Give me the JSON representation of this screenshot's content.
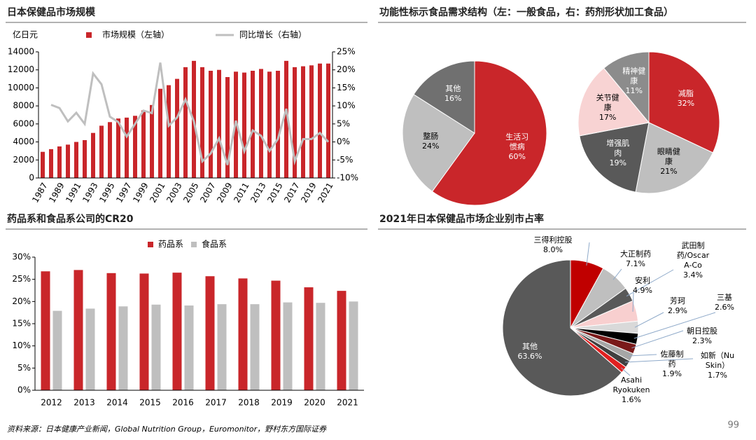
{
  "chart_data": [
    {
      "type": "bar",
      "title": "日本保健品市场规模",
      "y_label": "亿日元",
      "categories": [
        "1987",
        null,
        "1989",
        null,
        "1991",
        null,
        "1993",
        null,
        "1995",
        null,
        "1997",
        null,
        "1999",
        null,
        "2001",
        null,
        "2003",
        null,
        "2005",
        null,
        "2007",
        null,
        "2009",
        null,
        "2011",
        null,
        "2013",
        null,
        "2015",
        null,
        "2017",
        null,
        "2019",
        null,
        "2021"
      ],
      "series": [
        {
          "name": "市场规模（左轴）",
          "color": "#c9262a",
          "values": [
            2900,
            3200,
            3500,
            3700,
            4000,
            4200,
            5000,
            5800,
            6200,
            6600,
            6700,
            6900,
            7500,
            8100,
            9900,
            10300,
            11000,
            12300,
            13000,
            12300,
            11900,
            12000,
            11200,
            11800,
            11700,
            11900,
            12100,
            11800,
            11900,
            13000,
            12300,
            12400,
            12500,
            12700,
            12700
          ]
        },
        {
          "name": "同比增长（右轴）",
          "color": "#bfbfbf",
          "type": "line",
          "axis": "y2",
          "values": [
            null,
            10.3,
            9.4,
            5.7,
            8.1,
            5.0,
            19.0,
            16.0,
            7.0,
            5.5,
            1.5,
            5.0,
            8.7,
            8.0,
            22.0,
            4.5,
            6.8,
            11.8,
            5.7,
            -5.4,
            -3.2,
            1.0,
            -6.4,
            5.9,
            -2.6,
            3.2,
            1.7,
            -2.5,
            0.8,
            9.2,
            -5.4,
            0.8,
            0.8,
            2.5,
            0.0
          ]
        }
      ],
      "ylim": [
        0,
        14000
      ],
      "yticks": [
        0,
        2000,
        4000,
        6000,
        8000,
        10000,
        12000,
        14000
      ],
      "y2lim": [
        -10,
        25
      ],
      "y2ticks": [
        {
          "value": -10,
          "label": "-10%"
        },
        {
          "value": -5,
          "label": "-5%"
        },
        {
          "value": 0,
          "label": "0%"
        },
        {
          "value": 5,
          "label": "5%"
        },
        {
          "value": 10,
          "label": "10%"
        },
        {
          "value": 15,
          "label": "15%"
        },
        {
          "value": 20,
          "label": "20%"
        },
        {
          "value": 25,
          "label": "25%"
        }
      ]
    },
    {
      "type": "pie",
      "title": "功能性标示食品需求结构（左：一般食品，右：药剂形状加工食品）",
      "pies": [
        {
          "categories": [
            "生活习惯病",
            "整肠",
            "其他"
          ],
          "values": [
            60,
            24,
            16
          ],
          "value_labels": [
            "60%",
            "24%",
            "16%"
          ],
          "colors": [
            "#c9262a",
            "#bfbfbf",
            "#707070"
          ]
        },
        {
          "categories": [
            "减脂",
            "眼睛健康",
            "增强肌肉",
            "关节健康",
            "精神健康"
          ],
          "values": [
            32,
            21,
            19,
            17,
            11
          ],
          "value_labels": [
            "32%",
            "21%",
            "19%",
            "17%",
            "11%"
          ],
          "colors": [
            "#c9262a",
            "#bfbfbf",
            "#595959",
            "#f8d3d3",
            "#8c8c8c"
          ]
        }
      ]
    },
    {
      "type": "bar",
      "title": "药品系和食品系公司的CR20",
      "categories": [
        "2012",
        "2013",
        "2014",
        "2015",
        "2016",
        "2017",
        "2018",
        "2019",
        "2020",
        "2021"
      ],
      "series": [
        {
          "name": "药品系",
          "color": "#c9262a",
          "values": [
            26.8,
            27.1,
            26.4,
            26.3,
            26.5,
            25.7,
            25.2,
            24.7,
            23.2,
            22.4
          ]
        },
        {
          "name": "食品系",
          "color": "#bfbfbf",
          "values": [
            17.9,
            18.4,
            18.9,
            19.3,
            19.1,
            19.4,
            19.4,
            19.8,
            19.7,
            20.0
          ]
        }
      ],
      "ylim": [
        0,
        30
      ],
      "yticks": [
        {
          "value": 0,
          "label": "0%"
        },
        {
          "value": 5,
          "label": "5%"
        },
        {
          "value": 10,
          "label": "10%"
        },
        {
          "value": 15,
          "label": "15%"
        },
        {
          "value": 20,
          "label": "20%"
        },
        {
          "value": 25,
          "label": "25%"
        },
        {
          "value": 30,
          "label": "30%"
        }
      ]
    },
    {
      "type": "pie",
      "title": "2021年日本保健品市场企业别市占率",
      "pies": [
        {
          "categories": [
            "三得利控股",
            "大正制药",
            "武田制药/Oscar A-Co",
            "安利",
            "芳珂",
            "三基",
            "朝日控股",
            "佐藤制药",
            "如新（Nu Skin）",
            "Asahi Ryokuken",
            "其他"
          ],
          "values": [
            8.0,
            7.1,
            3.4,
            4.9,
            2.9,
            2.6,
            2.3,
            1.9,
            1.7,
            1.6,
            63.6
          ],
          "value_labels": [
            "8.0%",
            "7.1%",
            "3.4%",
            "4.9%",
            "2.9%",
            "2.6%",
            "2.3%",
            "1.9%",
            "1.7%",
            "1.6%",
            "63.6%"
          ],
          "colors": [
            "#c00000",
            "#bfbfbf",
            "#595959",
            "#f8cfcf",
            "#d9d9d9",
            "#000000",
            "#7a1a1a",
            "#a6a6a6",
            "#404040",
            "#e02020",
            "#595959"
          ]
        }
      ]
    }
  ],
  "source": "资料来源：日本健康产业新闻，Global Nutrition Group，Euromonitor，野村东方国际证券",
  "page_number": "99"
}
